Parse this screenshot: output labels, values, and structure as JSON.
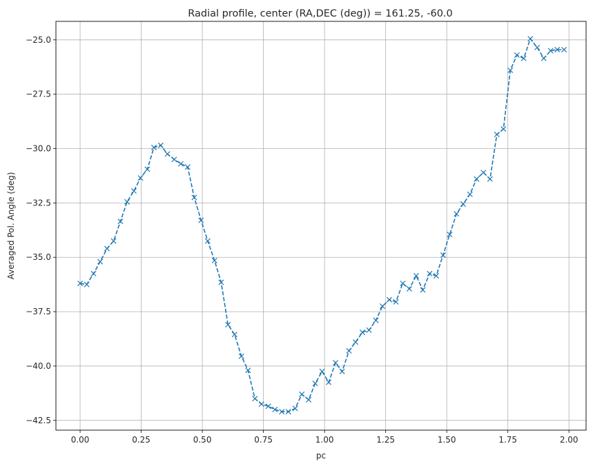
{
  "chart_data": {
    "type": "line",
    "title": "Radial profile, center (RA,DEC (deg)) = 161.25, -60.0",
    "xlabel": "pc",
    "ylabel": "Averaged Pol. Angle (deg)",
    "xlim": [
      -0.099,
      2.07
    ],
    "ylim": [
      -42.95,
      -24.15
    ],
    "xticks": [
      0.0,
      0.25,
      0.5,
      0.75,
      1.0,
      1.25,
      1.5,
      1.75,
      2.0
    ],
    "xtick_labels": [
      "0.00",
      "0.25",
      "0.50",
      "0.75",
      "1.00",
      "1.25",
      "1.50",
      "1.75",
      "2.00"
    ],
    "yticks": [
      -42.5,
      -40.0,
      -37.5,
      -35.0,
      -32.5,
      -30.0,
      -27.5,
      -25.0
    ],
    "ytick_labels": [
      "−42.5",
      "−40.0",
      "−37.5",
      "−35.0",
      "−32.5",
      "−30.0",
      "−27.5",
      "−25.0"
    ],
    "grid": true,
    "color": "#1f77b4",
    "linestyle": "dashed",
    "marker": "x",
    "series": [
      {
        "x": [
          0.0,
          0.027,
          0.055,
          0.082,
          0.11,
          0.137,
          0.165,
          0.192,
          0.22,
          0.247,
          0.275,
          0.302,
          0.33,
          0.357,
          0.385,
          0.412,
          0.44,
          0.467,
          0.495,
          0.522,
          0.55,
          0.577,
          0.605,
          0.632,
          0.66,
          0.687,
          0.715,
          0.742,
          0.77,
          0.797,
          0.825,
          0.852,
          0.88,
          0.907,
          0.935,
          0.962,
          0.99,
          1.017,
          1.045,
          1.072,
          1.1,
          1.127,
          1.155,
          1.182,
          1.21,
          1.237,
          1.265,
          1.292,
          1.32,
          1.347,
          1.375,
          1.402,
          1.43,
          1.457,
          1.485,
          1.512,
          1.54,
          1.567,
          1.595,
          1.622,
          1.65,
          1.677,
          1.705,
          1.732,
          1.76,
          1.787,
          1.815,
          1.842,
          1.87,
          1.897,
          1.925,
          1.952,
          1.98
        ],
        "y": [
          -36.2,
          -36.25,
          -35.75,
          -35.2,
          -34.6,
          -34.25,
          -33.35,
          -32.45,
          -31.95,
          -31.35,
          -30.95,
          -29.95,
          -29.85,
          -30.25,
          -30.5,
          -30.7,
          -30.85,
          -32.25,
          -33.3,
          -34.25,
          -35.15,
          -36.15,
          -38.1,
          -38.55,
          -39.55,
          -40.2,
          -41.5,
          -41.75,
          -41.85,
          -42.0,
          -42.1,
          -42.1,
          -41.95,
          -41.3,
          -41.55,
          -40.8,
          -40.25,
          -40.75,
          -39.85,
          -40.25,
          -39.3,
          -38.9,
          -38.45,
          -38.35,
          -37.9,
          -37.25,
          -36.95,
          -37.05,
          -36.2,
          -36.45,
          -35.85,
          -36.5,
          -35.75,
          -35.85,
          -34.9,
          -33.95,
          -33.0,
          -32.55,
          -32.1,
          -31.4,
          -31.1,
          -31.4,
          -29.35,
          -29.1,
          -26.4,
          -25.7,
          -25.85,
          -24.95,
          -25.35,
          -25.85,
          -25.5,
          -25.45,
          -25.45
        ]
      }
    ]
  }
}
